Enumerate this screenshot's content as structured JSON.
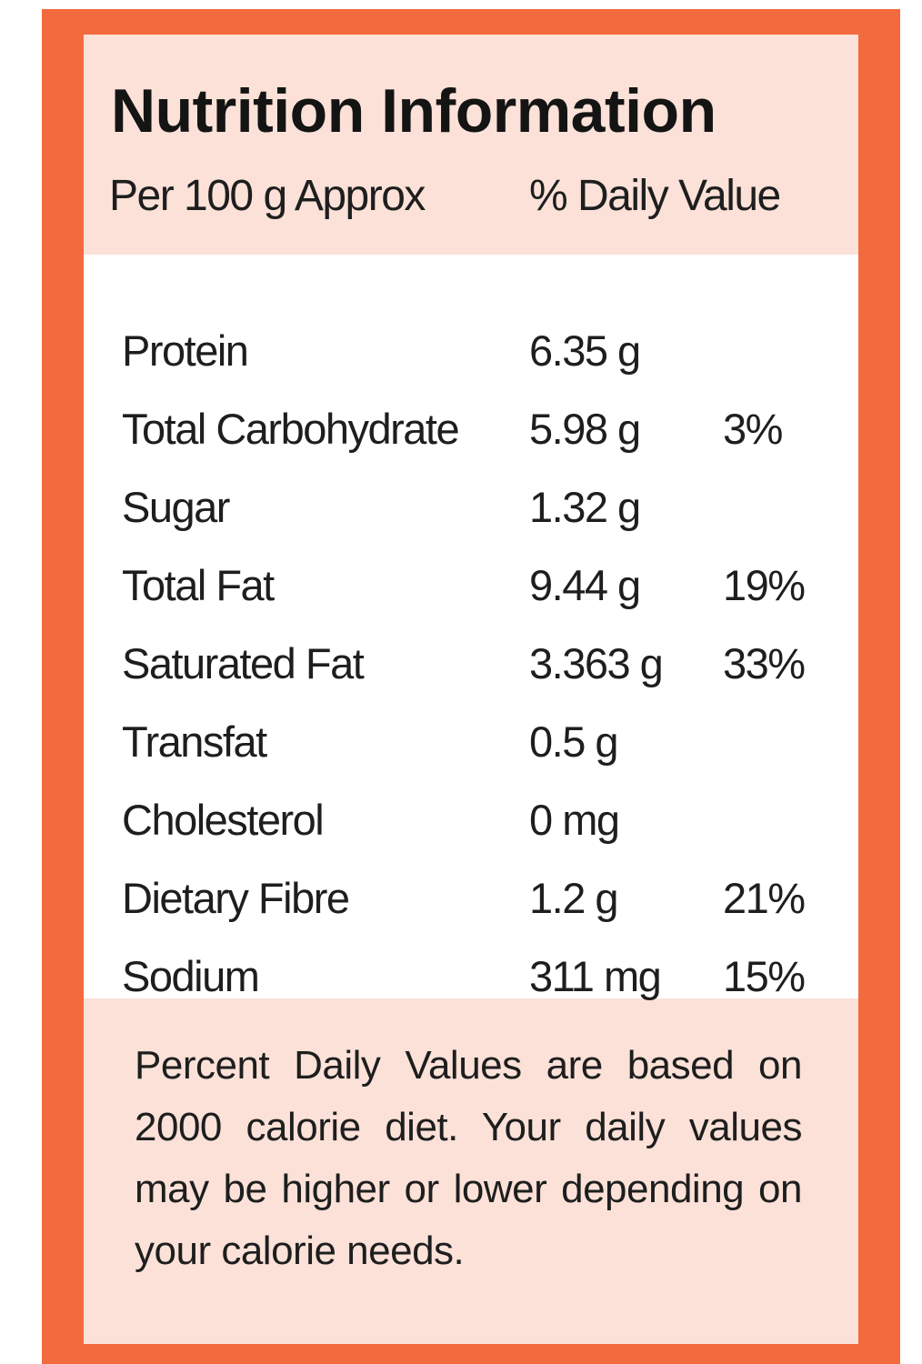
{
  "label": {
    "title": "Nutrition Information",
    "subheader_left": "Per 100 g Approx",
    "subheader_right": "% Daily Value",
    "rows": [
      {
        "name": "Protein",
        "amount": "6.35 g",
        "daily_value": ""
      },
      {
        "name": "Total Carbohydrate",
        "amount": "5.98 g",
        "daily_value": "3%"
      },
      {
        "name": "Sugar",
        "amount": "1.32 g",
        "daily_value": ""
      },
      {
        "name": "Total Fat",
        "amount": "9.44 g",
        "daily_value": "19%"
      },
      {
        "name": "Saturated Fat",
        "amount": "3.363 g",
        "daily_value": "33%"
      },
      {
        "name": "Transfat",
        "amount": "0.5 g",
        "daily_value": ""
      },
      {
        "name": "Cholesterol",
        "amount": "0 mg",
        "daily_value": ""
      },
      {
        "name": "Dietary Fibre",
        "amount": "1.2 g",
        "daily_value": "21%"
      },
      {
        "name": "Sodium",
        "amount": "311 mg",
        "daily_value": "15%"
      }
    ],
    "footnote": "Percent Daily Values are based on 2000 calorie diet. Your daily values may be higher or lower depending on your calorie needs."
  },
  "colors": {
    "border": "#f26a3d",
    "panel": "#fbe1d8",
    "table_background": "#ffffff",
    "text": "#1e1e1e"
  }
}
